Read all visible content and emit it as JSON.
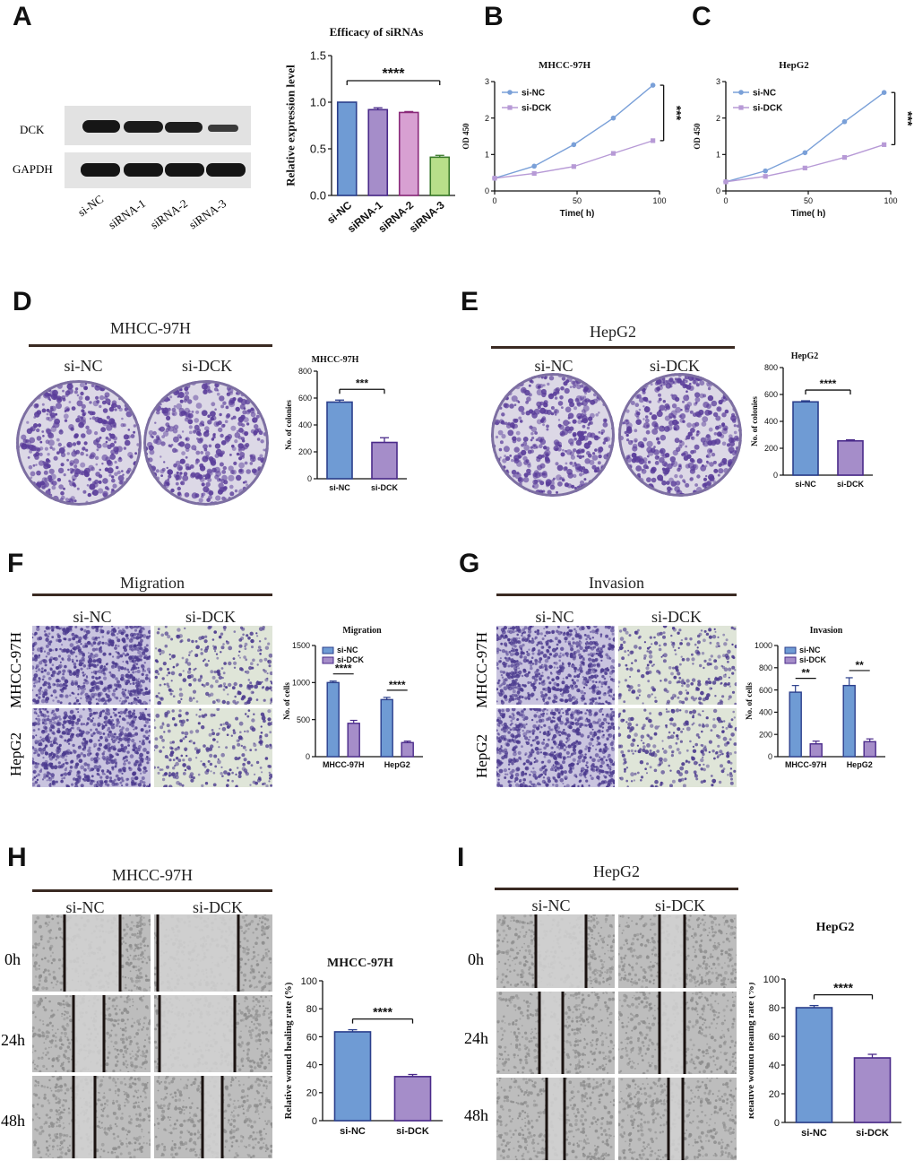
{
  "panels": {
    "A": {
      "letter": "A",
      "blot": {
        "rows": [
          "DCK",
          "GAPDH"
        ],
        "lanes": [
          "si-NC",
          "siRNA-1",
          "siRNA-2",
          "siRNA-3"
        ]
      }
    },
    "B": {
      "letter": "B"
    },
    "C": {
      "letter": "C"
    },
    "D": {
      "letter": "D",
      "header": "MHCC-97H",
      "groups": [
        "si-NC",
        "si-DCK"
      ]
    },
    "E": {
      "letter": "E",
      "header": "HepG2",
      "groups": [
        "si-NC",
        "si-DCK"
      ]
    },
    "F": {
      "letter": "F",
      "header": "Migration",
      "groups": [
        "si-NC",
        "si-DCK"
      ],
      "rows": [
        "MHCC-97H",
        "HepG2"
      ]
    },
    "G": {
      "letter": "G",
      "header": "Invasion",
      "groups": [
        "si-NC",
        "si-DCK"
      ],
      "rows": [
        "MHCC-97H",
        "HepG2"
      ]
    },
    "H": {
      "letter": "H",
      "header": "MHCC-97H",
      "groups": [
        "si-NC",
        "si-DCK"
      ],
      "rows": [
        "0h",
        "24h",
        "48h"
      ]
    },
    "I": {
      "letter": "I",
      "header": "HepG2",
      "groups": [
        "si-NC",
        "si-DCK"
      ],
      "rows": [
        "0h",
        "24h",
        "48h"
      ]
    }
  },
  "colors": {
    "blue": "#6f9bd4",
    "blue_edge": "#2b3f8c",
    "purple": "#a58dc9",
    "purple_edge": "#4a2a8a",
    "pink": "#d8a0d2",
    "pink_edge": "#8a2a7a",
    "green": "#b8df8a",
    "green_edge": "#3a7a2a",
    "line_blue": "#7aa0d8",
    "line_purple": "#b79ad6",
    "stain": "#5a3d9a"
  },
  "chart_data": [
    {
      "id": "A_bar",
      "type": "bar",
      "title": "Efficacy of siRNAs",
      "categories": [
        "si-NC",
        "siRNA-1",
        "siRNA-2",
        "siRNA-3"
      ],
      "values": [
        1.0,
        0.92,
        0.89,
        0.41
      ],
      "errors": [
        0.0,
        0.02,
        0.01,
        0.02
      ],
      "ylabel": "Relative expression level",
      "ylim": [
        0,
        1.5
      ],
      "yticks": [
        "0.0",
        "0.5",
        "1.0",
        "1.5"
      ],
      "ytick_values": [
        0,
        0.5,
        1.0,
        1.5
      ],
      "significance": "****"
    },
    {
      "id": "B_line",
      "type": "line",
      "title": "MHCC-97H",
      "x": [
        0,
        24,
        48,
        72,
        96
      ],
      "xlabel": "Time( h)",
      "ylabel": "OD 450",
      "xlim": [
        0,
        100
      ],
      "ylim": [
        0,
        3
      ],
      "xticks": [
        "0",
        "50",
        "100"
      ],
      "xtick_values": [
        0,
        50,
        100
      ],
      "yticks": [
        "0",
        "1",
        "2",
        "3"
      ],
      "ytick_values": [
        0,
        1,
        2,
        3
      ],
      "series": [
        {
          "name": "si-NC",
          "values": [
            0.35,
            0.68,
            1.27,
            2.0,
            2.9
          ]
        },
        {
          "name": "si-DCK",
          "values": [
            0.35,
            0.48,
            0.67,
            1.03,
            1.38
          ]
        }
      ],
      "significance": "***"
    },
    {
      "id": "C_line",
      "type": "line",
      "title": "HepG2",
      "x": [
        0,
        24,
        48,
        72,
        96
      ],
      "xlabel": "Time( h)",
      "ylabel": "OD 450",
      "xlim": [
        0,
        100
      ],
      "ylim": [
        0,
        3
      ],
      "xticks": [
        "0",
        "50",
        "100"
      ],
      "xtick_values": [
        0,
        50,
        100
      ],
      "yticks": [
        "0",
        "1",
        "2",
        "3"
      ],
      "ytick_values": [
        0,
        1,
        2,
        3
      ],
      "series": [
        {
          "name": "si-NC",
          "values": [
            0.25,
            0.55,
            1.05,
            1.9,
            2.7
          ]
        },
        {
          "name": "si-DCK",
          "values": [
            0.25,
            0.4,
            0.63,
            0.92,
            1.27
          ]
        }
      ],
      "significance": "***"
    },
    {
      "id": "D_bar",
      "type": "bar",
      "title": "MHCC-97H",
      "categories": [
        "si-NC",
        "si-DCK"
      ],
      "values": [
        570,
        270
      ],
      "errors": [
        15,
        35
      ],
      "ylabel": "No. of colonies",
      "ylim": [
        0,
        800
      ],
      "yticks": [
        "0",
        "200",
        "400",
        "600",
        "800"
      ],
      "ytick_values": [
        0,
        200,
        400,
        600,
        800
      ],
      "significance": "***"
    },
    {
      "id": "E_bar",
      "type": "bar",
      "title": "HepG2",
      "categories": [
        "si-NC",
        "si-DCK"
      ],
      "values": [
        545,
        255
      ],
      "errors": [
        8,
        8
      ],
      "ylabel": "No. of colonies",
      "ylim": [
        0,
        800
      ],
      "yticks": [
        "0",
        "200",
        "400",
        "600",
        "800"
      ],
      "ytick_values": [
        0,
        200,
        400,
        600,
        800
      ],
      "significance": "****"
    },
    {
      "id": "F_bar",
      "type": "bar",
      "title": "Migration",
      "categories": [
        "MHCC-97H",
        "HepG2"
      ],
      "series": [
        {
          "name": "si-NC",
          "values": [
            1000,
            770
          ],
          "errors": [
            20,
            30
          ]
        },
        {
          "name": "si-DCK",
          "values": [
            450,
            190
          ],
          "errors": [
            40,
            20
          ]
        }
      ],
      "ylabel": "No. of cells",
      "ylim": [
        0,
        1500
      ],
      "yticks": [
        "0",
        "500",
        "1000",
        "1500"
      ],
      "ytick_values": [
        0,
        500,
        1000,
        1500
      ],
      "significance": [
        "****",
        "****"
      ]
    },
    {
      "id": "G_bar",
      "type": "bar",
      "title": "Invasion",
      "categories": [
        "MHCC-97H",
        "HepG2"
      ],
      "series": [
        {
          "name": "si-NC",
          "values": [
            580,
            640
          ],
          "errors": [
            60,
            70
          ]
        },
        {
          "name": "si-DCK",
          "values": [
            115,
            135
          ],
          "errors": [
            25,
            25
          ]
        }
      ],
      "ylabel": "No. of cells",
      "ylim": [
        0,
        1000
      ],
      "yticks": [
        "0",
        "200",
        "400",
        "600",
        "800",
        "1000"
      ],
      "ytick_values": [
        0,
        200,
        400,
        600,
        800,
        1000
      ],
      "significance": [
        "**",
        "**"
      ]
    },
    {
      "id": "H_bar",
      "type": "bar",
      "title": "MHCC-97H",
      "categories": [
        "si-NC",
        "si-DCK"
      ],
      "values": [
        63.5,
        31.5
      ],
      "errors": [
        1.5,
        1.5
      ],
      "ylabel": "Relative wound healing rate (%)",
      "ylim": [
        0,
        100
      ],
      "yticks": [
        "0",
        "20",
        "40",
        "60",
        "80",
        "100"
      ],
      "ytick_values": [
        0,
        20,
        40,
        60,
        80,
        100
      ],
      "significance": "****"
    },
    {
      "id": "I_bar",
      "type": "bar",
      "title": "HepG2",
      "categories": [
        "si-NC",
        "si-DCK"
      ],
      "values": [
        80,
        45
      ],
      "errors": [
        1.5,
        2.5
      ],
      "ylabel": "Relative wound healing rate (%)",
      "ylim": [
        0,
        100
      ],
      "yticks": [
        "0",
        "20",
        "40",
        "60",
        "80",
        "100"
      ],
      "ytick_values": [
        0,
        20,
        40,
        60,
        80,
        100
      ],
      "significance": "****"
    }
  ]
}
